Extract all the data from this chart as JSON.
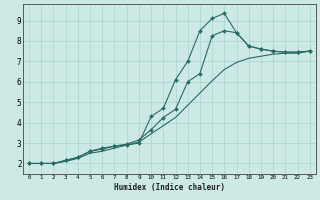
{
  "xlabel": "Humidex (Indice chaleur)",
  "bg_color": "#cce9e5",
  "grid_color": "#aad4cf",
  "line_color": "#2a6b62",
  "xlim": [
    -0.5,
    23.5
  ],
  "ylim": [
    1.5,
    9.8
  ],
  "xticks": [
    0,
    1,
    2,
    3,
    4,
    5,
    6,
    7,
    8,
    9,
    10,
    11,
    12,
    13,
    14,
    15,
    16,
    17,
    18,
    19,
    20,
    21,
    22,
    23
  ],
  "yticks": [
    2,
    3,
    4,
    5,
    6,
    7,
    8,
    9
  ],
  "line1_x": [
    0,
    1,
    2,
    3,
    4,
    5,
    6,
    7,
    8,
    9,
    10,
    11,
    12,
    13,
    14,
    15,
    16,
    17,
    18,
    19,
    20,
    21,
    22,
    23
  ],
  "line1_y": [
    2.0,
    2.0,
    2.0,
    2.15,
    2.3,
    2.6,
    2.75,
    2.85,
    2.9,
    3.0,
    4.3,
    4.7,
    6.1,
    7.0,
    8.5,
    9.1,
    9.35,
    8.4,
    7.75,
    7.6,
    7.5,
    7.45,
    7.45,
    7.5
  ],
  "line2_x": [
    0,
    1,
    2,
    3,
    4,
    5,
    6,
    7,
    8,
    9,
    10,
    11,
    12,
    13,
    14,
    15,
    16,
    17,
    18,
    19,
    20,
    21,
    22,
    23
  ],
  "line2_y": [
    2.0,
    2.0,
    2.0,
    2.15,
    2.3,
    2.6,
    2.7,
    2.85,
    2.95,
    3.15,
    3.65,
    4.25,
    4.65,
    6.0,
    6.4,
    8.25,
    8.5,
    8.4,
    7.75,
    7.6,
    7.5,
    7.45,
    7.45,
    7.5
  ],
  "line3_x": [
    0,
    1,
    2,
    3,
    4,
    5,
    6,
    7,
    8,
    9,
    10,
    11,
    12,
    13,
    14,
    15,
    16,
    17,
    18,
    19,
    20,
    21,
    22,
    23
  ],
  "line3_y": [
    2.0,
    2.0,
    2.0,
    2.1,
    2.25,
    2.5,
    2.6,
    2.75,
    2.9,
    3.05,
    3.45,
    3.85,
    4.25,
    4.85,
    5.45,
    6.05,
    6.6,
    6.95,
    7.15,
    7.25,
    7.35,
    7.4,
    7.4,
    7.5
  ]
}
